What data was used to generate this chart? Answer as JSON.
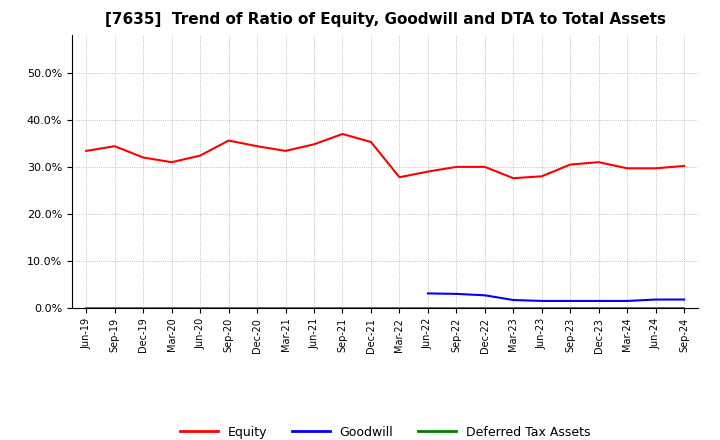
{
  "title": "[7635]  Trend of Ratio of Equity, Goodwill and DTA to Total Assets",
  "x_labels": [
    "Jun-19",
    "Sep-19",
    "Dec-19",
    "Mar-20",
    "Jun-20",
    "Sep-20",
    "Dec-20",
    "Mar-21",
    "Jun-21",
    "Sep-21",
    "Dec-21",
    "Mar-22",
    "Jun-22",
    "Sep-22",
    "Dec-22",
    "Mar-23",
    "Jun-23",
    "Sep-23",
    "Dec-23",
    "Mar-24",
    "Jun-24",
    "Sep-24"
  ],
  "equity": [
    0.334,
    0.344,
    0.32,
    0.31,
    0.324,
    0.356,
    0.344,
    0.334,
    0.348,
    0.37,
    0.353,
    0.278,
    0.29,
    0.3,
    0.3,
    0.276,
    0.28,
    0.305,
    0.31,
    0.297,
    0.297,
    0.302
  ],
  "goodwill": [
    null,
    null,
    null,
    null,
    null,
    null,
    null,
    null,
    null,
    null,
    null,
    null,
    0.031,
    0.03,
    0.027,
    0.017,
    0.015,
    0.015,
    0.015,
    0.015,
    0.018,
    0.018
  ],
  "dta": [
    0.001,
    0.001,
    0.001,
    0.001,
    0.001,
    0.001,
    0.001,
    0.001,
    0.001,
    0.001,
    0.001,
    0.001,
    0.001,
    0.001,
    0.001,
    0.001,
    0.001,
    0.001,
    0.001,
    0.001,
    0.001,
    0.001
  ],
  "equity_color": "#ff0000",
  "goodwill_color": "#0000ff",
  "dta_color": "#008000",
  "background_color": "#ffffff",
  "grid_color": "#aaaaaa",
  "ylim": [
    0.0,
    0.58
  ],
  "yticks": [
    0.0,
    0.1,
    0.2,
    0.3,
    0.4,
    0.5
  ],
  "title_fontsize": 11,
  "legend_labels": [
    "Equity",
    "Goodwill",
    "Deferred Tax Assets"
  ],
  "legend_fontsize": 9
}
